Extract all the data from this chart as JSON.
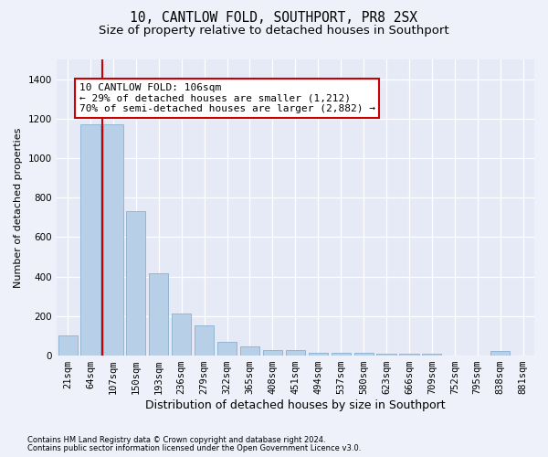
{
  "title": "10, CANTLOW FOLD, SOUTHPORT, PR8 2SX",
  "subtitle": "Size of property relative to detached houses in Southport",
  "xlabel": "Distribution of detached houses by size in Southport",
  "ylabel": "Number of detached properties",
  "categories": [
    "21sqm",
    "64sqm",
    "107sqm",
    "150sqm",
    "193sqm",
    "236sqm",
    "279sqm",
    "322sqm",
    "365sqm",
    "408sqm",
    "451sqm",
    "494sqm",
    "537sqm",
    "580sqm",
    "623sqm",
    "666sqm",
    "709sqm",
    "752sqm",
    "795sqm",
    "838sqm",
    "881sqm"
  ],
  "values": [
    100,
    1170,
    1170,
    730,
    415,
    215,
    155,
    70,
    48,
    30,
    28,
    15,
    13,
    13,
    10,
    10,
    8,
    0,
    0,
    25,
    0
  ],
  "bar_color": "#b8cfe8",
  "bar_edge_color": "#8ab0d0",
  "background_color": "#eef1f9",
  "plot_bg_color": "#e6eaf6",
  "grid_color": "#ffffff",
  "vline_x": 1.5,
  "vline_color": "#cc0000",
  "annotation_text": "10 CANTLOW FOLD: 106sqm\n← 29% of detached houses are smaller (1,212)\n70% of semi-detached houses are larger (2,882) →",
  "annotation_box_facecolor": "#ffffff",
  "annotation_box_edgecolor": "#cc0000",
  "ylim": [
    0,
    1500
  ],
  "yticks": [
    0,
    200,
    400,
    600,
    800,
    1000,
    1200,
    1400
  ],
  "footer1": "Contains HM Land Registry data © Crown copyright and database right 2024.",
  "footer2": "Contains public sector information licensed under the Open Government Licence v3.0.",
  "title_fontsize": 10.5,
  "subtitle_fontsize": 9.5,
  "tick_fontsize": 7.5,
  "ylabel_fontsize": 8,
  "xlabel_fontsize": 9,
  "annotation_fontsize": 8,
  "footer_fontsize": 6
}
